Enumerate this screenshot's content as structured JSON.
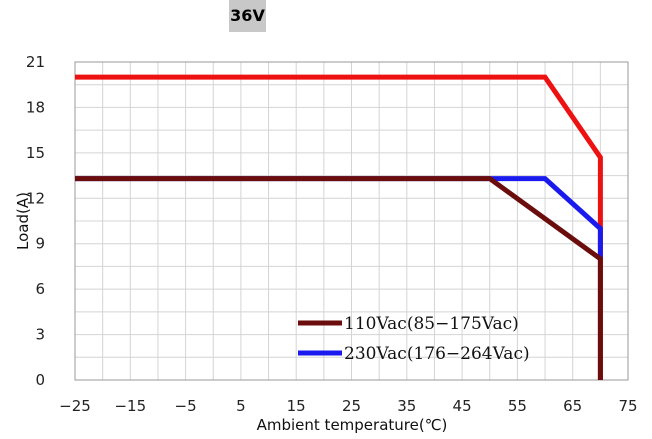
{
  "header": {
    "badge_text": "36V"
  },
  "chart_data": {
    "type": "line",
    "title": "",
    "xlabel": "Ambient temperature(℃)",
    "ylabel": "Load(A)",
    "xlim": [
      -25,
      75
    ],
    "ylim": [
      0,
      21
    ],
    "x_ticks": [
      -25,
      -15,
      -5,
      5,
      15,
      25,
      35,
      45,
      55,
      65,
      75
    ],
    "x_tick_labels": [
      "−25",
      "−15",
      "−5",
      "5",
      "15",
      "25",
      "35",
      "45",
      "55",
      "65",
      "75"
    ],
    "y_ticks": [
      0,
      3,
      6,
      9,
      12,
      15,
      18,
      21
    ],
    "y_tick_labels": [
      "0",
      "3",
      "6",
      "9",
      "12",
      "15",
      "18",
      "21"
    ],
    "grid": true,
    "legend_position": "bottom-right",
    "series": [
      {
        "name": "",
        "color": "#ee1111",
        "points": [
          [
            -25,
            20
          ],
          [
            60,
            20
          ],
          [
            70,
            14.7
          ],
          [
            70,
            0
          ]
        ]
      },
      {
        "name": "230Vac(176−264Vac)",
        "color": "#1a1aee",
        "points": [
          [
            -25,
            13.3
          ],
          [
            60,
            13.3
          ],
          [
            70,
            10
          ],
          [
            70,
            8
          ]
        ]
      },
      {
        "name": "110Vac(85−175Vac)",
        "color": "#6b0d0d",
        "points": [
          [
            -25,
            13.3
          ],
          [
            50,
            13.3
          ],
          [
            70,
            8
          ],
          [
            70,
            0
          ]
        ]
      }
    ],
    "legend": [
      {
        "label": "110Vac(85−175Vac)",
        "color": "#6b0d0d"
      },
      {
        "label": "230Vac(176−264Vac)",
        "color": "#1a1aee"
      }
    ]
  }
}
